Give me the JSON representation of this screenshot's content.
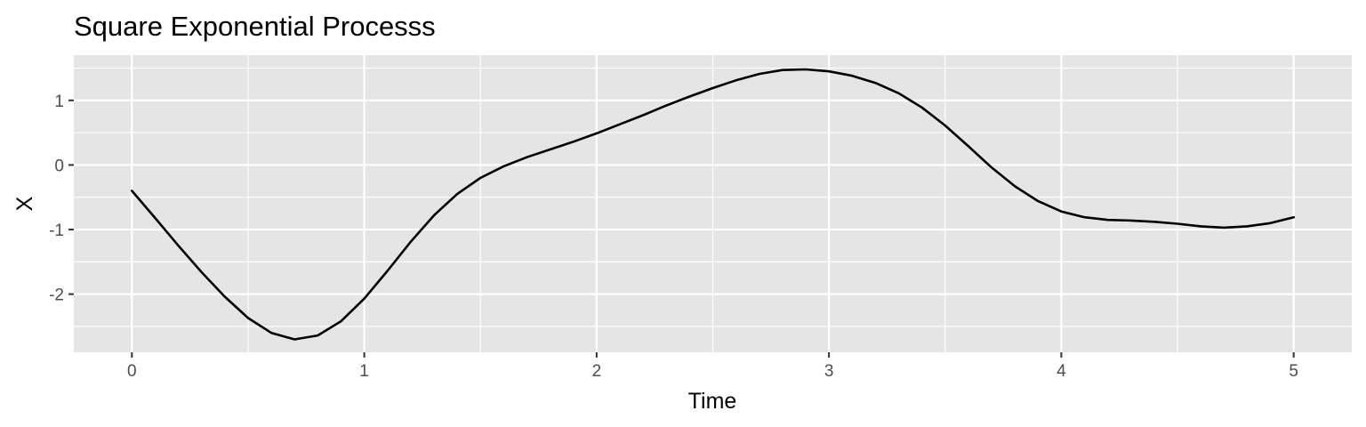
{
  "chart_data": {
    "type": "line",
    "title": "Square Exponential Processs",
    "xlabel": "Time",
    "ylabel": "X",
    "xlim": [
      -0.25,
      5.25
    ],
    "ylim": [
      -2.9,
      1.7
    ],
    "x_ticks": [
      0,
      1,
      2,
      3,
      4,
      5
    ],
    "y_ticks": [
      -2,
      -1,
      0,
      1
    ],
    "grid": true,
    "legend": "none",
    "colors": {
      "panel": "#e5e5e5",
      "grid": "#ffffff",
      "line": "#000000",
      "tick_text": "#4d4d4d"
    },
    "series": [
      {
        "x": [
          0,
          0.1,
          0.2,
          0.3,
          0.4,
          0.5,
          0.6,
          0.7,
          0.8,
          0.9,
          1.0,
          1.1,
          1.2,
          1.3,
          1.4,
          1.5,
          1.6,
          1.7,
          1.8,
          1.9,
          2.0,
          2.1,
          2.2,
          2.3,
          2.4,
          2.5,
          2.6,
          2.7,
          2.8,
          2.9,
          3.0,
          3.1,
          3.2,
          3.3,
          3.4,
          3.5,
          3.6,
          3.7,
          3.8,
          3.9,
          4.0,
          4.1,
          4.2,
          4.3,
          4.4,
          4.5,
          4.6,
          4.7,
          4.8,
          4.9,
          5.0
        ],
        "values": [
          -0.4,
          -0.82,
          -1.25,
          -1.66,
          -2.04,
          -2.37,
          -2.6,
          -2.7,
          -2.64,
          -2.42,
          -2.07,
          -1.64,
          -1.19,
          -0.78,
          -0.45,
          -0.2,
          -0.02,
          0.12,
          0.24,
          0.36,
          0.49,
          0.63,
          0.77,
          0.92,
          1.06,
          1.19,
          1.31,
          1.41,
          1.47,
          1.48,
          1.45,
          1.38,
          1.27,
          1.11,
          0.89,
          0.61,
          0.29,
          -0.04,
          -0.33,
          -0.56,
          -0.72,
          -0.81,
          -0.85,
          -0.86,
          -0.88,
          -0.91,
          -0.95,
          -0.97,
          -0.95,
          -0.9,
          -0.81
        ]
      }
    ]
  }
}
